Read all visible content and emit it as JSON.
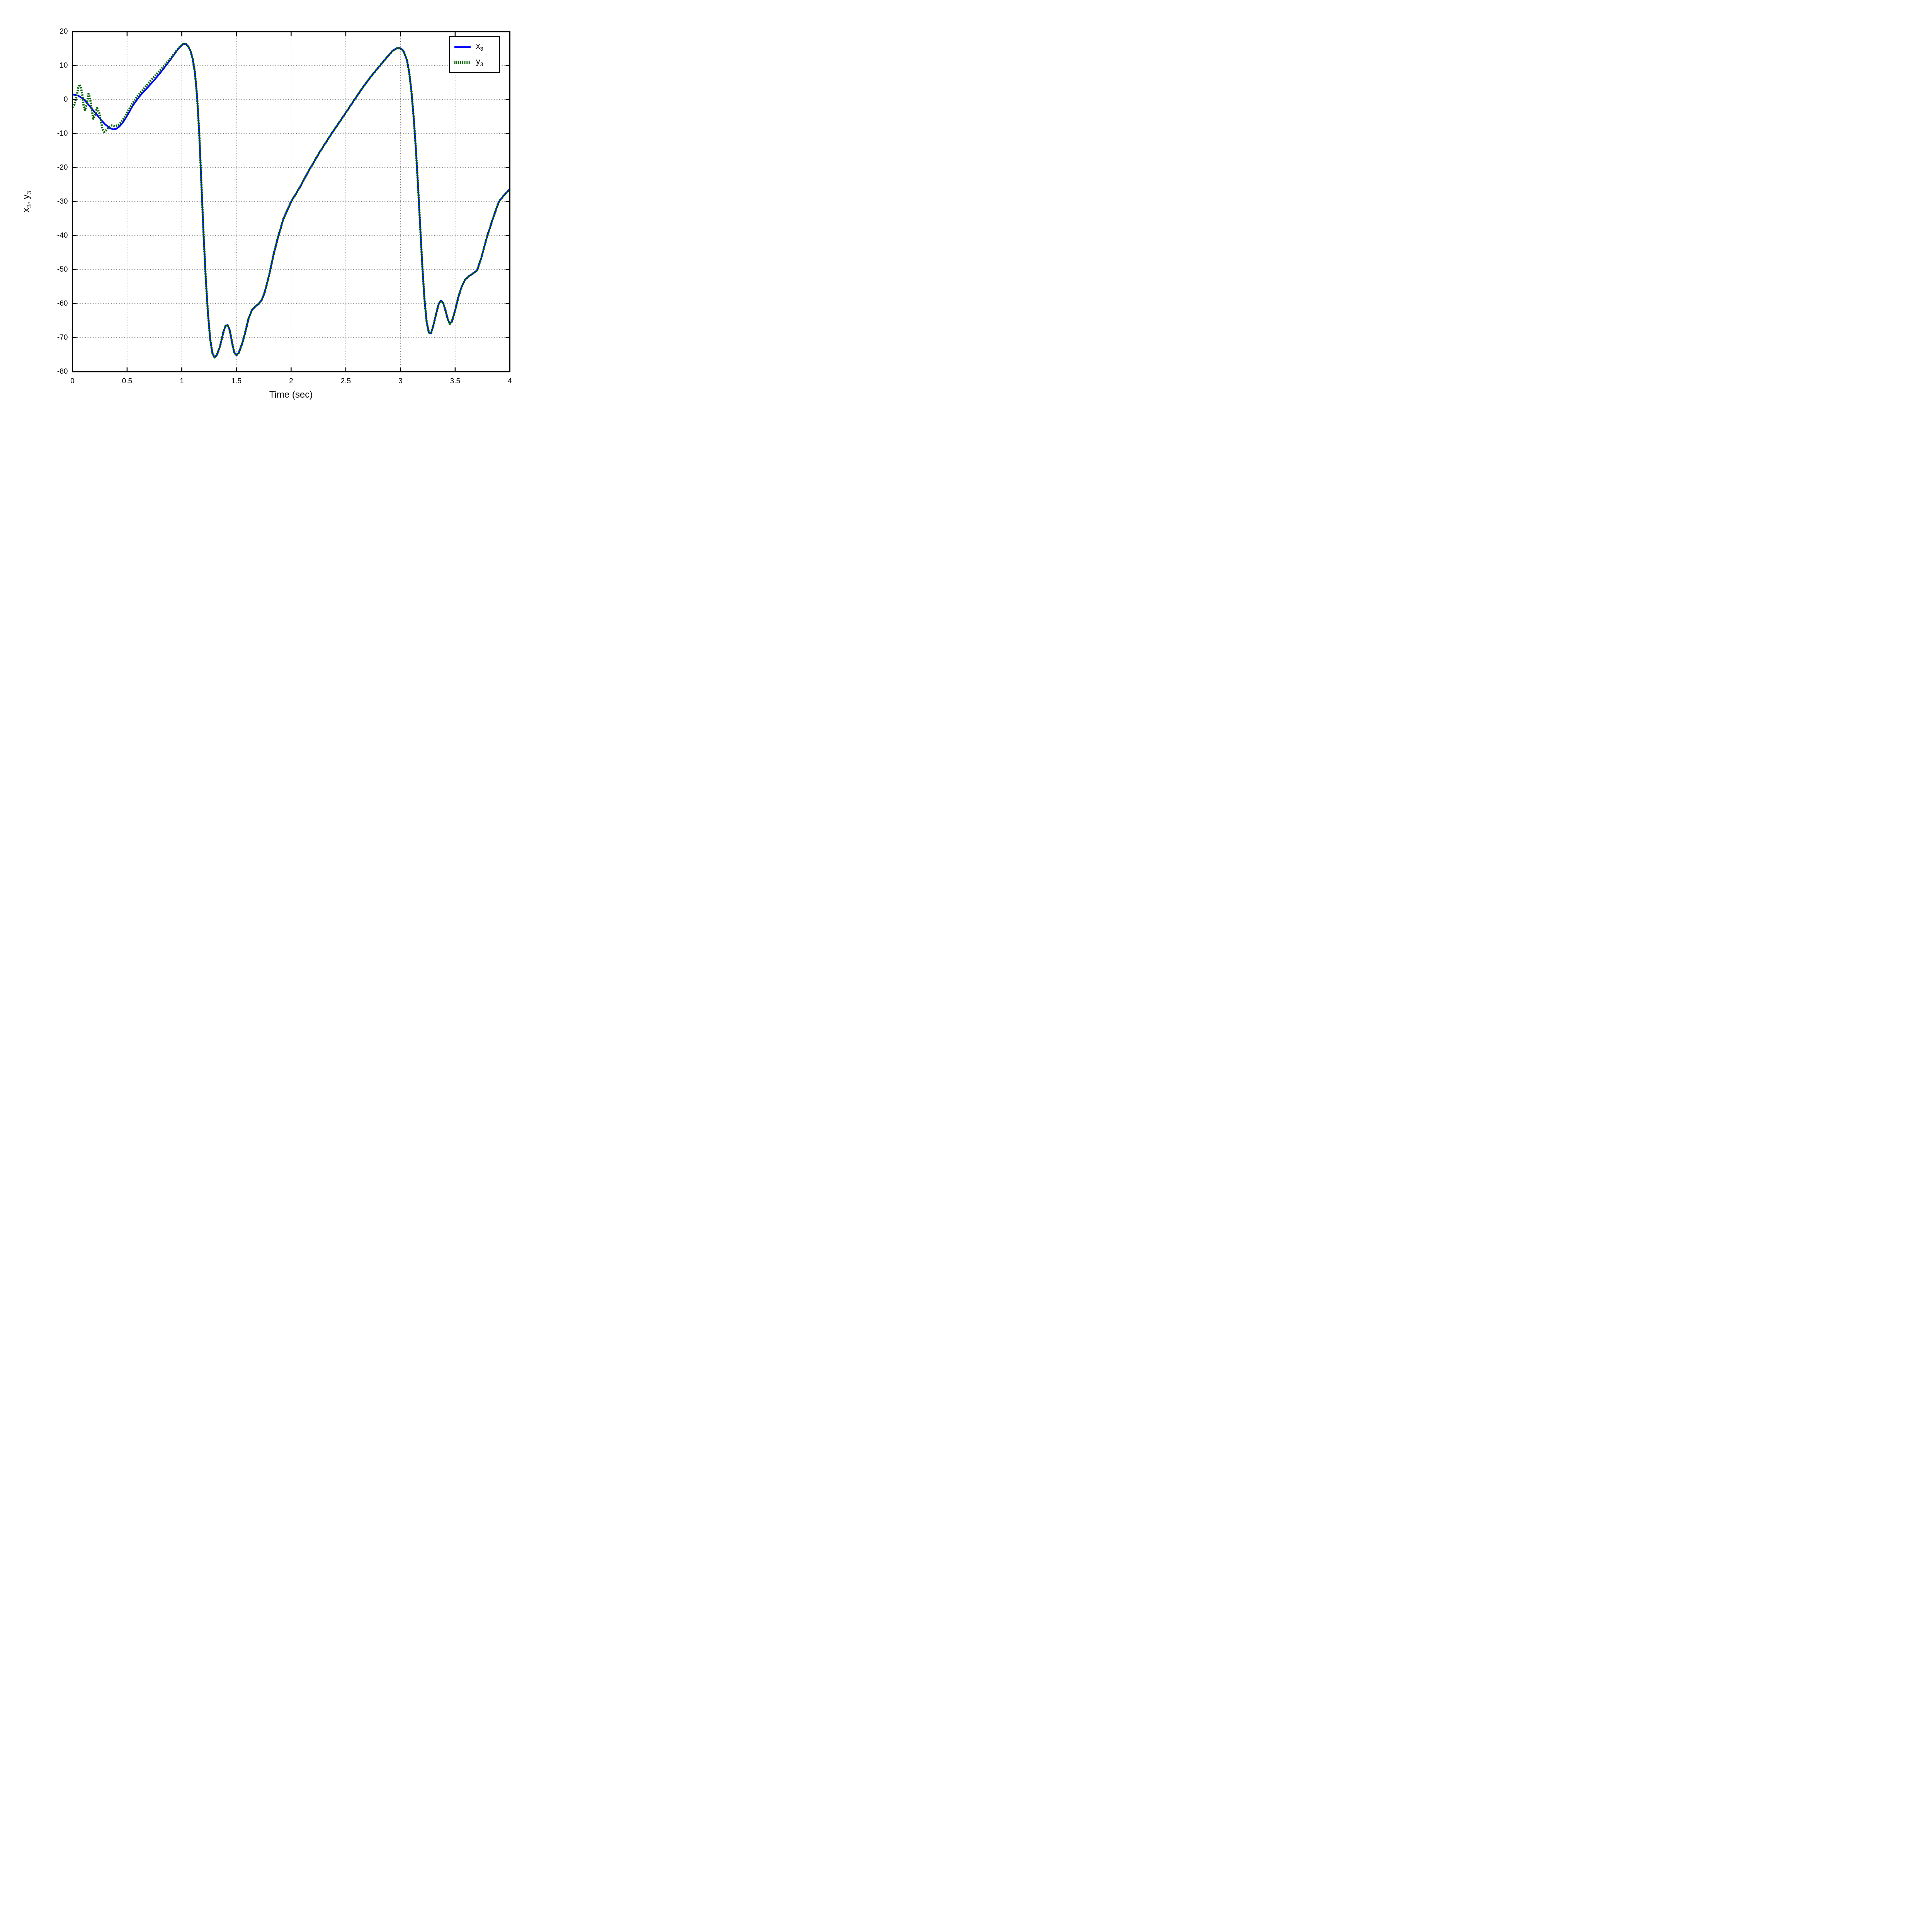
{
  "chart_data": {
    "type": "line",
    "title": "",
    "xlabel": "Time (sec)",
    "ylabel": "x_3, y_3",
    "ylabel_segments": [
      {
        "text": "x",
        "sub": false
      },
      {
        "text": "3",
        "sub": true
      },
      {
        "text": ", ",
        "sub": false
      },
      {
        "text": "y",
        "sub": false
      },
      {
        "text": "3",
        "sub": true
      }
    ],
    "xlim": [
      0,
      4
    ],
    "ylim": [
      -80,
      20
    ],
    "x_ticks": {
      "values": [
        0,
        0.5,
        1,
        1.5,
        2,
        2.5,
        3,
        3.5,
        4
      ],
      "labels": [
        "0",
        "0.5",
        "1",
        "1.5",
        "2",
        "2.5",
        "3",
        "3.5",
        "4"
      ]
    },
    "y_ticks": {
      "values": [
        20,
        10,
        0,
        -10,
        -20,
        -30,
        -40,
        -50,
        -60,
        -70,
        -80
      ],
      "labels": [
        "20",
        "10",
        "0",
        "-10",
        "-20",
        "-30",
        "-40",
        "-50",
        "-60",
        "-70",
        "-80"
      ]
    },
    "grid": {
      "shown": true,
      "style": "dotted",
      "color": "#333333",
      "interior_only": true
    },
    "axis_color": "#000000",
    "background": "#ffffff",
    "legend": {
      "position": "top-right",
      "border_color": "#000000"
    },
    "series": [
      {
        "name": "x3",
        "legend_base": "x",
        "legend_sub": "3",
        "color": "#0000ff",
        "line_style": "solid",
        "line_width": 4.2,
        "points": [
          [
            0,
            1.5
          ],
          [
            0.05,
            1.2
          ],
          [
            0.1,
            0.2
          ],
          [
            0.14,
            -1.2
          ],
          [
            0.18,
            -2.8
          ],
          [
            0.22,
            -4.3
          ],
          [
            0.26,
            -5.9
          ],
          [
            0.3,
            -7.3
          ],
          [
            0.34,
            -8.3
          ],
          [
            0.37,
            -8.75
          ],
          [
            0.4,
            -8.6
          ],
          [
            0.43,
            -7.9
          ],
          [
            0.46,
            -6.8
          ],
          [
            0.49,
            -5.3
          ],
          [
            0.52,
            -3.6
          ],
          [
            0.55,
            -1.9
          ],
          [
            0.58,
            -0.5
          ],
          [
            0.61,
            0.8
          ],
          [
            0.65,
            2.3
          ],
          [
            0.7,
            4.0
          ],
          [
            0.75,
            5.8
          ],
          [
            0.8,
            7.7
          ],
          [
            0.85,
            9.8
          ],
          [
            0.9,
            11.9
          ],
          [
            0.94,
            13.7
          ],
          [
            0.97,
            15.0
          ],
          [
            1.0,
            16.0
          ],
          [
            1.02,
            16.4
          ],
          [
            1.04,
            16.3
          ],
          [
            1.06,
            15.6
          ],
          [
            1.08,
            14.3
          ],
          [
            1.1,
            12.0
          ],
          [
            1.12,
            8.0
          ],
          [
            1.14,
            1.0
          ],
          [
            1.16,
            -10
          ],
          [
            1.18,
            -25
          ],
          [
            1.2,
            -40
          ],
          [
            1.22,
            -53
          ],
          [
            1.24,
            -63
          ],
          [
            1.26,
            -70.5
          ],
          [
            1.28,
            -74.5
          ],
          [
            1.3,
            -75.8
          ],
          [
            1.32,
            -75.2
          ],
          [
            1.35,
            -72.5
          ],
          [
            1.38,
            -68.5
          ],
          [
            1.4,
            -66.5
          ],
          [
            1.42,
            -66.3
          ],
          [
            1.44,
            -68
          ],
          [
            1.46,
            -71.5
          ],
          [
            1.48,
            -74.3
          ],
          [
            1.5,
            -75.2
          ],
          [
            1.52,
            -74.5
          ],
          [
            1.55,
            -72
          ],
          [
            1.58,
            -68.5
          ],
          [
            1.61,
            -64.5
          ],
          [
            1.64,
            -62
          ],
          [
            1.67,
            -60.9
          ],
          [
            1.7,
            -60.2
          ],
          [
            1.73,
            -59
          ],
          [
            1.76,
            -56.5
          ],
          [
            1.8,
            -51.5
          ],
          [
            1.84,
            -45.5
          ],
          [
            1.88,
            -40.5
          ],
          [
            1.93,
            -35
          ],
          [
            2.0,
            -30
          ],
          [
            2.08,
            -25.8
          ],
          [
            2.16,
            -21
          ],
          [
            2.26,
            -15.5
          ],
          [
            2.37,
            -10
          ],
          [
            2.47,
            -5.3
          ],
          [
            2.58,
            0
          ],
          [
            2.66,
            3.8
          ],
          [
            2.74,
            7.2
          ],
          [
            2.82,
            10.3
          ],
          [
            2.88,
            12.6
          ],
          [
            2.93,
            14.4
          ],
          [
            2.97,
            15.15
          ],
          [
            3.0,
            15.1
          ],
          [
            3.03,
            14.2
          ],
          [
            3.06,
            11.5
          ],
          [
            3.08,
            8
          ],
          [
            3.1,
            2.5
          ],
          [
            3.12,
            -5
          ],
          [
            3.14,
            -14
          ],
          [
            3.16,
            -25
          ],
          [
            3.18,
            -37
          ],
          [
            3.2,
            -49
          ],
          [
            3.22,
            -59
          ],
          [
            3.24,
            -65.5
          ],
          [
            3.26,
            -68.5
          ],
          [
            3.28,
            -68.7
          ],
          [
            3.3,
            -66.5
          ],
          [
            3.33,
            -62.5
          ],
          [
            3.35,
            -60
          ],
          [
            3.37,
            -59.1
          ],
          [
            3.39,
            -59.8
          ],
          [
            3.41,
            -61.8
          ],
          [
            3.43,
            -64.3
          ],
          [
            3.45,
            -66
          ],
          [
            3.47,
            -65.3
          ],
          [
            3.5,
            -62
          ],
          [
            3.53,
            -58
          ],
          [
            3.56,
            -55
          ],
          [
            3.59,
            -53
          ],
          [
            3.63,
            -51.8
          ],
          [
            3.67,
            -51
          ],
          [
            3.7,
            -50.2
          ],
          [
            3.74,
            -46.5
          ],
          [
            3.79,
            -40.5
          ],
          [
            3.84,
            -35.5
          ],
          [
            3.9,
            -30
          ],
          [
            3.95,
            -28
          ],
          [
            4.0,
            -26.3
          ]
        ]
      },
      {
        "name": "y3",
        "legend_base": "y",
        "legend_sub": "3",
        "color": "#006600",
        "line_style": "dotted",
        "line_width": 5.6,
        "points": [
          [
            0,
            -2.3
          ],
          [
            0.02,
            -1.4
          ],
          [
            0.04,
            1.2
          ],
          [
            0.06,
            4.4
          ],
          [
            0.075,
            4.0
          ],
          [
            0.09,
            1.5
          ],
          [
            0.103,
            -1.9
          ],
          [
            0.115,
            -3.1
          ],
          [
            0.13,
            -1.6
          ],
          [
            0.147,
            1.7
          ],
          [
            0.16,
            0.7
          ],
          [
            0.175,
            -2.5
          ],
          [
            0.19,
            -5.6
          ],
          [
            0.205,
            -4.6
          ],
          [
            0.225,
            -2.5
          ],
          [
            0.245,
            -3.8
          ],
          [
            0.26,
            -6.2
          ],
          [
            0.275,
            -8.7
          ],
          [
            0.29,
            -9.5
          ],
          [
            0.31,
            -9.0
          ],
          [
            0.33,
            -8.2
          ],
          [
            0.36,
            -7.6
          ],
          [
            0.39,
            -7.8
          ],
          [
            0.42,
            -7.5
          ],
          [
            0.45,
            -6.5
          ],
          [
            0.48,
            -5.0
          ],
          [
            0.51,
            -3.3
          ],
          [
            0.54,
            -1.6
          ],
          [
            0.57,
            -0.1
          ],
          [
            0.6,
            1.2
          ],
          [
            0.64,
            2.7
          ],
          [
            0.68,
            4.2
          ],
          [
            0.72,
            5.7
          ],
          [
            0.76,
            7.2
          ],
          [
            0.8,
            8.5
          ],
          [
            0.85,
            10.4
          ],
          [
            0.9,
            12.2
          ],
          [
            0.94,
            13.9
          ],
          [
            0.97,
            15.1
          ],
          [
            1.0,
            16.05
          ],
          [
            1.02,
            16.45
          ],
          [
            1.04,
            16.35
          ],
          [
            1.06,
            15.6
          ],
          [
            1.08,
            14.3
          ],
          [
            1.1,
            12.0
          ],
          [
            1.12,
            8.0
          ],
          [
            1.14,
            1.0
          ],
          [
            1.16,
            -10
          ],
          [
            1.18,
            -25
          ],
          [
            1.2,
            -40
          ],
          [
            1.22,
            -53
          ],
          [
            1.24,
            -63
          ],
          [
            1.26,
            -70.5
          ],
          [
            1.28,
            -74.5
          ],
          [
            1.3,
            -75.8
          ],
          [
            1.32,
            -75.2
          ],
          [
            1.35,
            -72.5
          ],
          [
            1.38,
            -68.5
          ],
          [
            1.4,
            -66.5
          ],
          [
            1.42,
            -66.3
          ],
          [
            1.44,
            -68
          ],
          [
            1.46,
            -71.5
          ],
          [
            1.48,
            -74.3
          ],
          [
            1.5,
            -75.2
          ],
          [
            1.52,
            -74.5
          ],
          [
            1.55,
            -72
          ],
          [
            1.58,
            -68.5
          ],
          [
            1.61,
            -64.5
          ],
          [
            1.64,
            -62
          ],
          [
            1.67,
            -60.9
          ],
          [
            1.7,
            -60.2
          ],
          [
            1.73,
            -59
          ],
          [
            1.76,
            -56.5
          ],
          [
            1.8,
            -51.5
          ],
          [
            1.84,
            -45.5
          ],
          [
            1.88,
            -40.5
          ],
          [
            1.93,
            -35
          ],
          [
            2.0,
            -30
          ],
          [
            2.08,
            -25.8
          ],
          [
            2.16,
            -21
          ],
          [
            2.26,
            -15.5
          ],
          [
            2.37,
            -10
          ],
          [
            2.47,
            -5.3
          ],
          [
            2.58,
            0
          ],
          [
            2.66,
            3.8
          ],
          [
            2.74,
            7.2
          ],
          [
            2.82,
            10.3
          ],
          [
            2.88,
            12.6
          ],
          [
            2.93,
            14.4
          ],
          [
            2.97,
            15.15
          ],
          [
            3.0,
            15.1
          ],
          [
            3.03,
            14.2
          ],
          [
            3.06,
            11.5
          ],
          [
            3.08,
            8
          ],
          [
            3.1,
            2.5
          ],
          [
            3.12,
            -5
          ],
          [
            3.14,
            -14
          ],
          [
            3.16,
            -25
          ],
          [
            3.18,
            -37
          ],
          [
            3.2,
            -49
          ],
          [
            3.22,
            -59
          ],
          [
            3.24,
            -65.5
          ],
          [
            3.26,
            -68.5
          ],
          [
            3.28,
            -68.7
          ],
          [
            3.3,
            -66.5
          ],
          [
            3.33,
            -62.5
          ],
          [
            3.35,
            -60
          ],
          [
            3.37,
            -59.1
          ],
          [
            3.39,
            -59.8
          ],
          [
            3.41,
            -61.8
          ],
          [
            3.43,
            -64.3
          ],
          [
            3.45,
            -66
          ],
          [
            3.47,
            -65.3
          ],
          [
            3.5,
            -62
          ],
          [
            3.53,
            -58
          ],
          [
            3.56,
            -55
          ],
          [
            3.59,
            -53
          ],
          [
            3.63,
            -51.8
          ],
          [
            3.67,
            -51
          ],
          [
            3.7,
            -50.2
          ],
          [
            3.74,
            -46.5
          ],
          [
            3.79,
            -40.5
          ],
          [
            3.84,
            -35.5
          ],
          [
            3.9,
            -30
          ],
          [
            3.95,
            -28
          ],
          [
            4.0,
            -26.3
          ]
        ]
      }
    ]
  },
  "layout_note": "MATLAB-style figure, plot box with mirrored inward ticks, dotted interior grid"
}
